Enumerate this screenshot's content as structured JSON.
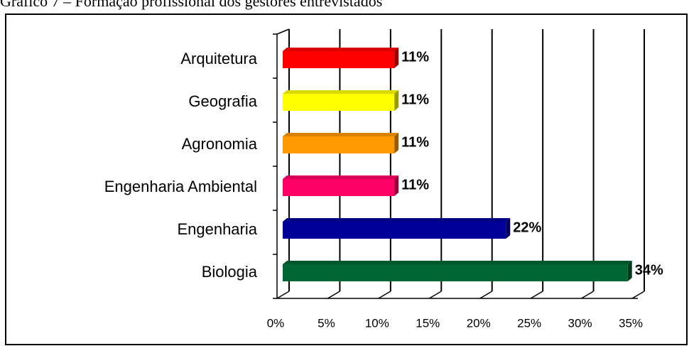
{
  "chart_data": {
    "type": "bar",
    "orientation": "horizontal",
    "title": "Gráfico 7 – Formação profissional dos gestores entrevistados",
    "categories": [
      "Arquitetura",
      "Geografia",
      "Agronomia",
      "Engenharia Ambiental",
      "Engenharia",
      "Biologia"
    ],
    "values": [
      11,
      11,
      11,
      11,
      22,
      34
    ],
    "value_labels": [
      "11%",
      "11%",
      "11%",
      "11%",
      "22%",
      "34%"
    ],
    "colors": [
      "#ff0000",
      "#ffff00",
      "#ff9900",
      "#ff0066",
      "#000099",
      "#006633"
    ],
    "xlim": [
      0,
      35
    ],
    "xticks": [
      {
        "value": 0,
        "label": "0%"
      },
      {
        "value": 5,
        "label": "5%"
      },
      {
        "value": 10,
        "label": "10%"
      },
      {
        "value": 15,
        "label": "15%"
      },
      {
        "value": 20,
        "label": "20%"
      },
      {
        "value": 25,
        "label": "25%"
      },
      {
        "value": 30,
        "label": "30%"
      },
      {
        "value": 35,
        "label": "35%"
      }
    ],
    "grid": true
  }
}
